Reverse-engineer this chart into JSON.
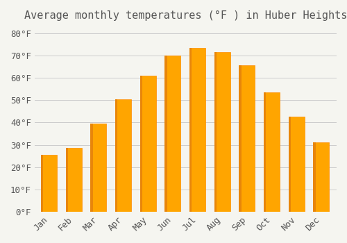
{
  "title": "Average monthly temperatures (°F ) in Huber Heights",
  "months": [
    "Jan",
    "Feb",
    "Mar",
    "Apr",
    "May",
    "Jun",
    "Jul",
    "Aug",
    "Sep",
    "Oct",
    "Nov",
    "Dec"
  ],
  "values": [
    25.5,
    28.5,
    39.5,
    50.5,
    61.0,
    70.0,
    73.5,
    71.5,
    65.5,
    53.5,
    42.5,
    31.0
  ],
  "bar_color": "#FFA500",
  "bar_edge_color": "#FF8C00",
  "background_color": "#f5f5f0",
  "grid_color": "#cccccc",
  "text_color": "#555555",
  "ylim": [
    0,
    83
  ],
  "yticks": [
    0,
    10,
    20,
    30,
    40,
    50,
    60,
    70,
    80
  ],
  "title_fontsize": 11,
  "tick_fontsize": 9,
  "font_family": "monospace"
}
